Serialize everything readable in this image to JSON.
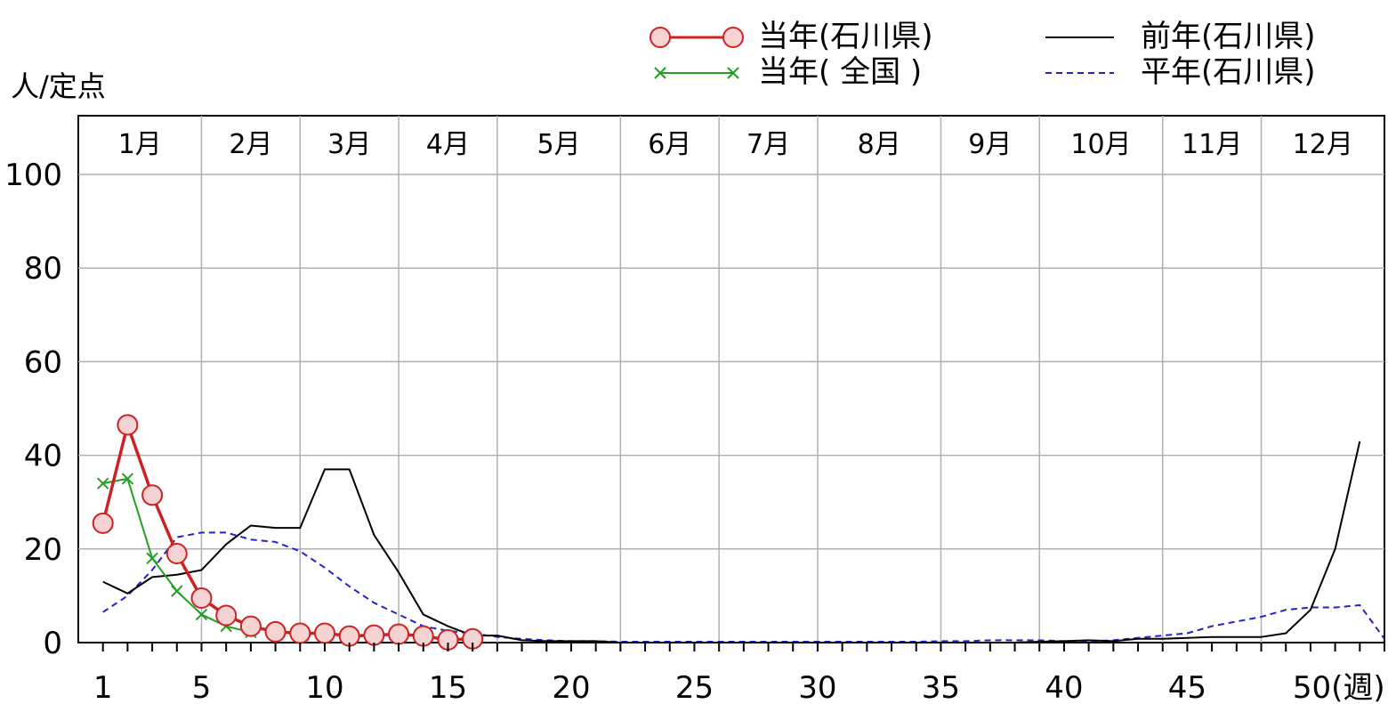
{
  "chart_data": {
    "type": "line",
    "ylabel": "人/定点",
    "xlabel_suffix": "(週)",
    "ylim": [
      0,
      110
    ],
    "xlim": [
      0,
      53
    ],
    "x_ticks": [
      1,
      5,
      10,
      15,
      20,
      25,
      30,
      35,
      40,
      45,
      50
    ],
    "y_ticks": [
      0,
      20,
      40,
      60,
      80,
      100
    ],
    "months": [
      "1月",
      "2月",
      "3月",
      "4月",
      "5月",
      "6月",
      "7月",
      "8月",
      "9月",
      "10月",
      "11月",
      "12月"
    ],
    "month_boundaries": [
      0,
      5,
      9,
      13,
      17,
      22,
      26,
      30,
      35,
      39,
      44,
      48,
      53
    ],
    "grid": true,
    "series": [
      {
        "name": "当年(石川県)",
        "color": "#cc2222",
        "marker": "circle",
        "x": [
          1,
          2,
          3,
          4,
          5,
          6,
          7,
          8,
          9,
          10,
          11,
          12,
          13,
          14,
          15,
          16
        ],
        "values": [
          25.5,
          46.5,
          31.5,
          19.0,
          9.5,
          5.8,
          3.5,
          2.3,
          2.0,
          2.0,
          1.4,
          1.6,
          1.8,
          1.4,
          0.6,
          0.8
        ]
      },
      {
        "name": "当年( 全国 )",
        "color": "#22a022",
        "marker": "cross",
        "x": [
          1,
          2,
          3,
          4,
          5,
          6,
          7
        ],
        "values": [
          34.0,
          35.0,
          18.0,
          11.0,
          6.0,
          3.5,
          2.2
        ]
      },
      {
        "name": "前年(石川県)",
        "color": "#000000",
        "marker": "none",
        "x": [
          1,
          2,
          3,
          4,
          5,
          6,
          7,
          8,
          9,
          10,
          11,
          12,
          13,
          14,
          15,
          16,
          17,
          18,
          19,
          20,
          21,
          22,
          23,
          24,
          25,
          26,
          27,
          28,
          29,
          30,
          31,
          32,
          33,
          34,
          35,
          36,
          37,
          38,
          39,
          40,
          41,
          42,
          43,
          44,
          45,
          46,
          47,
          48,
          49,
          50,
          51,
          52
        ],
        "values": [
          13.0,
          10.5,
          14.0,
          14.5,
          15.5,
          21.0,
          25.0,
          24.5,
          24.5,
          37.0,
          37.0,
          23.0,
          15.0,
          6.0,
          3.5,
          1.5,
          1.5,
          0.5,
          0.3,
          0.3,
          0.3,
          0,
          0,
          0,
          0,
          0,
          0,
          0,
          0,
          0,
          0,
          0,
          0,
          0,
          0,
          0,
          0,
          0,
          0.2,
          0.3,
          0.5,
          0.3,
          0.8,
          0.8,
          1.0,
          1.2,
          1.2,
          1.2,
          2.0,
          7.0,
          20.0,
          43.0
        ]
      },
      {
        "name": "平年(石川県)",
        "color": "#2222cc",
        "marker": "none",
        "dashed": true,
        "x": [
          1,
          2,
          3,
          4,
          5,
          6,
          7,
          8,
          9,
          10,
          11,
          12,
          13,
          14,
          15,
          16,
          17,
          18,
          19,
          20,
          21,
          22,
          23,
          24,
          25,
          26,
          27,
          28,
          29,
          30,
          31,
          32,
          33,
          34,
          35,
          36,
          37,
          38,
          39,
          40,
          41,
          42,
          43,
          44,
          45,
          46,
          47,
          48,
          49,
          50,
          51,
          52,
          53
        ],
        "values": [
          6.5,
          10.0,
          15.5,
          22.5,
          23.5,
          23.5,
          22.0,
          21.5,
          19.5,
          16.0,
          12.0,
          8.5,
          6.0,
          3.5,
          2.5,
          2.0,
          1.2,
          0.8,
          0.5,
          0.3,
          0.3,
          0.2,
          0.2,
          0.2,
          0.2,
          0.2,
          0.2,
          0.2,
          0.2,
          0.2,
          0.2,
          0.2,
          0.2,
          0.2,
          0.3,
          0.3,
          0.5,
          0.5,
          0.5,
          0.3,
          0.3,
          0.5,
          1.0,
          1.5,
          2.0,
          3.5,
          4.5,
          5.5,
          7.0,
          7.5,
          7.5,
          8.0,
          0.8
        ]
      }
    ]
  }
}
